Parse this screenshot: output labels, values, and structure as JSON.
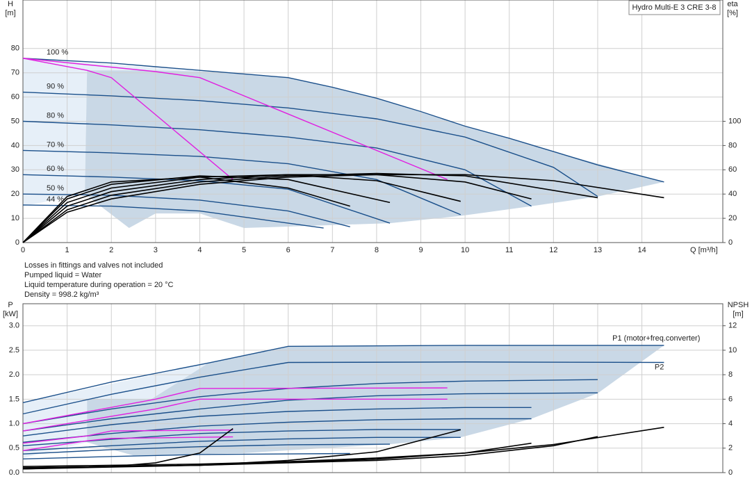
{
  "chart_data": [
    {
      "type": "line",
      "title": "Hydro Multi-E 3 CRE 3-8",
      "y_label": "H",
      "y_unit": "[m]",
      "y2_label": "eta",
      "y2_unit": "[%]",
      "x_label": "Q [m³/h]",
      "notes": [
        "Losses in fittings and valves not included",
        "Pumped liquid = Water",
        "Liquid temperature during operation = 20 °C",
        "Density = 998.2 kg/m³"
      ],
      "xlim": [
        0,
        15.83
      ],
      "xticks": [
        0,
        1,
        2,
        3,
        4,
        5,
        6,
        7,
        8,
        9,
        10,
        11,
        12,
        13,
        14
      ],
      "ylim": [
        0,
        100
      ],
      "yticks": [
        0,
        10,
        20,
        30,
        40,
        50,
        60,
        70,
        80
      ],
      "y2lim": [
        0,
        200
      ],
      "y2ticks": [
        0,
        20,
        40,
        60,
        80,
        100
      ],
      "grid": true,
      "regions": [
        {
          "color": "#e6eff8",
          "x": [
            0,
            4.2,
            2.9,
            1.45,
            1.4,
            0
          ],
          "values": [
            76,
            70.5,
            71,
            71,
            20,
            15
          ]
        },
        {
          "color": "#c9d8e6",
          "x": [
            1.45,
            2.9,
            4.2,
            6,
            8,
            10,
            12,
            14.5,
            13,
            11.5,
            9.9,
            8.3,
            5,
            4,
            3,
            2.4,
            1.4
          ],
          "values": [
            71,
            71,
            70.5,
            68,
            59.5,
            48,
            37.5,
            25,
            19,
            15,
            11,
            8,
            6,
            12,
            12,
            6,
            20
          ]
        }
      ],
      "series": [
        {
          "name": "100 %",
          "color": "#1a4f8a",
          "x": [
            0,
            1,
            2,
            3,
            4,
            5,
            6,
            7,
            8,
            9,
            10,
            11,
            12,
            13,
            14.5
          ],
          "values": [
            76,
            75,
            74,
            72.5,
            71,
            69.5,
            68,
            64,
            59.5,
            54,
            48,
            43,
            37.5,
            32,
            25
          ]
        },
        {
          "name": "90 %",
          "color": "#1a4f8a",
          "x": [
            0,
            2,
            4,
            6,
            8,
            10,
            12,
            13
          ],
          "values": [
            62,
            60.5,
            58.5,
            55.5,
            51,
            43.5,
            31,
            19
          ]
        },
        {
          "name": "80 %",
          "color": "#1a4f8a",
          "x": [
            0,
            2,
            4,
            6,
            8,
            10,
            11.5
          ],
          "values": [
            50,
            48.5,
            46.5,
            43.5,
            39,
            30,
            15
          ]
        },
        {
          "name": "70 %",
          "color": "#1a4f8a",
          "x": [
            0,
            2,
            4,
            6,
            8,
            9.9
          ],
          "values": [
            38,
            37,
            35.5,
            32.5,
            26,
            11.5
          ]
        },
        {
          "name": "60 %",
          "color": "#1a4f8a",
          "x": [
            0,
            2,
            4,
            6,
            8.3
          ],
          "values": [
            28,
            27,
            25.5,
            22,
            8
          ]
        },
        {
          "name": "50 %",
          "color": "#1a4f8a",
          "x": [
            0,
            2,
            4,
            6,
            7.4
          ],
          "values": [
            20,
            19.5,
            17.5,
            13,
            6.5
          ]
        },
        {
          "name": "44 %",
          "color": "#1a4f8a",
          "x": [
            0,
            2,
            4,
            6.8
          ],
          "values": [
            15.5,
            15,
            13,
            6
          ]
        },
        {
          "color": "#e020e0",
          "x": [
            0,
            1.45,
            2,
            4.75
          ],
          "values": [
            76,
            71,
            68,
            26
          ]
        },
        {
          "color": "#e020e0",
          "x": [
            0,
            3,
            4,
            9.6
          ],
          "values": [
            76,
            70.5,
            68,
            26
          ]
        },
        {
          "color": "#000000",
          "axis": "y2",
          "x": [
            0,
            1,
            2,
            4,
            6,
            8,
            10,
            12,
            14.5
          ],
          "values": [
            0,
            25,
            36,
            48,
            54,
            56,
            56,
            51,
            37
          ]
        },
        {
          "color": "#000000",
          "axis": "y2",
          "x": [
            0,
            1,
            2,
            4,
            6,
            8,
            10,
            13
          ],
          "values": [
            0,
            27,
            39,
            50,
            55,
            57,
            55,
            37
          ]
        },
        {
          "color": "#000000",
          "axis": "y2",
          "x": [
            0,
            1,
            2,
            4,
            6,
            8,
            10,
            11.5
          ],
          "values": [
            0,
            30,
            42,
            52,
            56,
            56,
            50,
            36
          ]
        },
        {
          "color": "#000000",
          "axis": "y2",
          "x": [
            0,
            1,
            2,
            4,
            6,
            8,
            9.9
          ],
          "values": [
            0,
            33,
            45,
            54,
            56,
            51,
            34
          ]
        },
        {
          "color": "#000000",
          "axis": "y2",
          "x": [
            0,
            1,
            2,
            4,
            6,
            8.3
          ],
          "values": [
            0,
            36,
            48,
            55,
            52,
            33
          ]
        },
        {
          "color": "#000000",
          "axis": "y2",
          "x": [
            0,
            1,
            2,
            4,
            6,
            7.4
          ],
          "values": [
            0,
            38,
            50,
            54,
            45,
            30
          ]
        }
      ]
    },
    {
      "type": "line",
      "y_label": "P",
      "y_unit": "[kW]",
      "y2_label": "NPSH",
      "y2_unit": "[m]",
      "xlim": [
        0,
        15.83
      ],
      "ylim": [
        0,
        3.45
      ],
      "yticks": [
        {
          "value": 0,
          "label": "0.0"
        },
        0.5,
        {
          "value": 1,
          "label": "1.0"
        },
        1.5,
        {
          "value": 2,
          "label": "2.0"
        },
        2.5,
        {
          "value": 3,
          "label": "3.0"
        }
      ],
      "y2lim": [
        0,
        13.8
      ],
      "y2ticks": [
        0,
        2,
        4,
        6,
        8,
        10,
        12
      ],
      "grid": true,
      "regions": [
        {
          "color": "#e6eff8",
          "x": [
            0,
            4.2,
            2.9,
            1.45,
            1.45,
            0
          ],
          "values": [
            1.43,
            2.24,
            1.5,
            1.5,
            0.62,
            0.3
          ]
        },
        {
          "color": "#c9d8e6",
          "x": [
            2.9,
            4.2,
            6,
            14.5,
            13,
            11.5,
            9.9,
            8.3,
            5,
            2.5,
            1.45,
            1.45
          ],
          "values": [
            1.5,
            2.24,
            2.58,
            2.6,
            1.62,
            1.1,
            0.72,
            0.58,
            0.4,
            0.35,
            0.62,
            1.5
          ]
        }
      ],
      "series": [
        {
          "name": "P1 (motor+freq.converter)",
          "color": "#1a4f8a",
          "x": [
            0,
            2,
            4.2,
            6,
            10,
            14.5
          ],
          "values": [
            1.43,
            1.85,
            2.24,
            2.58,
            2.6,
            2.6
          ]
        },
        {
          "name": "P2",
          "color": "#1a4f8a",
          "x": [
            0,
            2,
            4,
            6,
            10,
            14.5
          ],
          "values": [
            1.2,
            1.6,
            1.95,
            2.25,
            2.26,
            2.25
          ]
        },
        {
          "color": "#1a4f8a",
          "x": [
            0,
            2,
            4,
            6,
            8,
            10,
            13
          ],
          "values": [
            1.0,
            1.3,
            1.55,
            1.72,
            1.82,
            1.87,
            1.9
          ]
        },
        {
          "color": "#1a4f8a",
          "x": [
            0,
            2,
            4,
            6,
            8,
            10,
            13
          ],
          "values": [
            0.85,
            1.1,
            1.3,
            1.48,
            1.57,
            1.61,
            1.63
          ]
        },
        {
          "color": "#1a4f8a",
          "x": [
            0,
            2,
            4,
            6,
            8,
            10,
            11.5
          ],
          "values": [
            0.75,
            0.98,
            1.15,
            1.25,
            1.3,
            1.33,
            1.33
          ]
        },
        {
          "color": "#1a4f8a",
          "x": [
            0,
            2,
            4,
            6,
            8,
            10,
            11.5
          ],
          "values": [
            0.62,
            0.8,
            0.95,
            1.03,
            1.08,
            1.1,
            1.1
          ]
        },
        {
          "color": "#1a4f8a",
          "x": [
            0,
            2,
            4,
            6,
            8,
            9.9
          ],
          "values": [
            0.55,
            0.68,
            0.8,
            0.85,
            0.88,
            0.88
          ]
        },
        {
          "color": "#1a4f8a",
          "x": [
            0,
            2,
            4,
            6,
            8,
            9.9
          ],
          "values": [
            0.45,
            0.55,
            0.64,
            0.69,
            0.72,
            0.72
          ]
        },
        {
          "color": "#1a4f8a",
          "x": [
            0,
            2,
            4,
            6,
            8.3
          ],
          "values": [
            0.38,
            0.47,
            0.53,
            0.57,
            0.58
          ]
        },
        {
          "color": "#1a4f8a",
          "x": [
            0,
            2,
            4,
            7.4
          ],
          "values": [
            0.28,
            0.33,
            0.37,
            0.39
          ]
        },
        {
          "color": "#e020e0",
          "x": [
            0,
            3,
            4,
            9.6
          ],
          "values": [
            1.0,
            1.5,
            1.72,
            1.73
          ]
        },
        {
          "color": "#e020e0",
          "x": [
            0,
            3,
            4,
            9.6
          ],
          "values": [
            0.85,
            1.3,
            1.5,
            1.5
          ]
        },
        {
          "color": "#e020e0",
          "x": [
            0,
            1.45,
            2,
            4.75
          ],
          "values": [
            0.6,
            0.75,
            0.85,
            0.87
          ]
        },
        {
          "color": "#e020e0",
          "x": [
            0,
            1.45,
            2,
            4.75
          ],
          "values": [
            0.45,
            0.65,
            0.7,
            0.73
          ]
        },
        {
          "color": "#000000",
          "axis": "y2",
          "x": [
            0,
            2,
            4,
            6,
            8,
            10,
            12,
            14.5
          ],
          "values": [
            0.5,
            0.6,
            0.7,
            0.9,
            1.2,
            1.6,
            2.3,
            3.7
          ]
        },
        {
          "color": "#000000",
          "axis": "y2",
          "x": [
            0,
            4,
            8,
            10,
            12,
            13
          ],
          "values": [
            0.4,
            0.6,
            1,
            1.4,
            2.2,
            2.95
          ]
        },
        {
          "color": "#000000",
          "axis": "y2",
          "x": [
            0,
            4,
            8,
            10,
            11.5
          ],
          "values": [
            0.4,
            0.6,
            1.1,
            1.6,
            2.4
          ]
        },
        {
          "color": "#000000",
          "axis": "y2",
          "x": [
            0,
            4,
            6,
            8,
            9.9
          ],
          "values": [
            0.3,
            0.6,
            1,
            1.7,
            3.5
          ]
        },
        {
          "color": "#000000",
          "axis": "y2",
          "x": [
            0,
            2,
            3,
            4,
            4.75
          ],
          "values": [
            0.3,
            0.5,
            0.8,
            1.6,
            3.6
          ]
        }
      ]
    }
  ]
}
